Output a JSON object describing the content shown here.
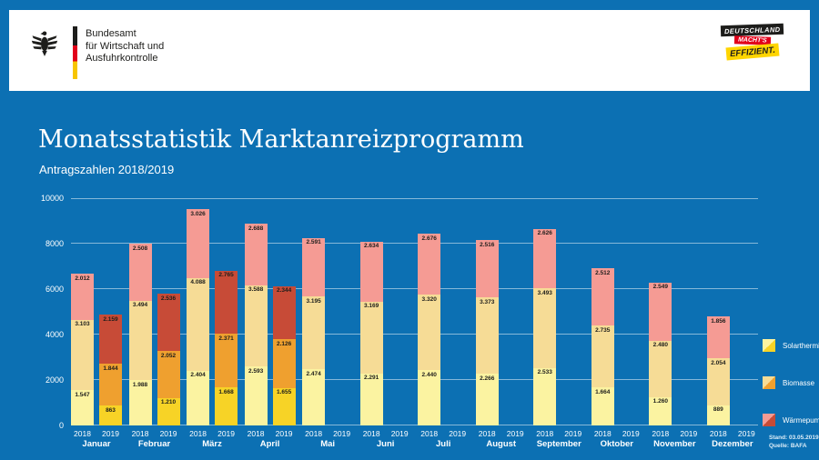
{
  "header": {
    "agency_lines": [
      "Bundesamt",
      "für Wirtschaft und",
      "Ausfuhrkontrolle"
    ],
    "campaign": [
      "DEUTSCHLAND",
      "MACHT'S",
      "EFFIZIENT."
    ]
  },
  "footer": {
    "stand": "Stand: 03.05.2019",
    "quelle": "Quelle: BAFA"
  },
  "colors": {
    "background": "#0C70B3",
    "header_background": "#FFFFFF",
    "text_on_blue": "#FFFFFF"
  },
  "chart_data": {
    "type": "bar",
    "stacked": true,
    "title": "Monatsstatistik Marktanreizprogramm",
    "subtitle": "Antragszahlen 2018/2019",
    "ylim": [
      0,
      10000
    ],
    "yticks": [
      0,
      2000,
      4000,
      6000,
      8000,
      10000
    ],
    "grid": true,
    "legend_position": "right",
    "segments": [
      "Solarthermie",
      "Biomasse",
      "Wärmepumpe"
    ],
    "legend": [
      {
        "label": "Solarthermie",
        "color_2018": "#FBF3A1",
        "color_2019": "#F7D326"
      },
      {
        "label": "Biomasse",
        "color_2018": "#F6DC96",
        "color_2019": "#EFA02F"
      },
      {
        "label": "Wärmepumpe",
        "color_2018": "#F59B94",
        "color_2019": "#C74B37"
      }
    ],
    "months": [
      {
        "month": "Januar",
        "bars": [
          {
            "year": "2018",
            "values": [
              1547,
              3103,
              2012
            ]
          },
          {
            "year": "2019",
            "values": [
              863,
              1844,
              2159
            ]
          }
        ]
      },
      {
        "month": "Februar",
        "bars": [
          {
            "year": "2018",
            "values": [
              1988,
              3494,
              2508
            ]
          },
          {
            "year": "2019",
            "values": [
              1210,
              2052,
              2536
            ]
          }
        ]
      },
      {
        "month": "März",
        "bars": [
          {
            "year": "2018",
            "values": [
              2404,
              4088,
              3026
            ]
          },
          {
            "year": "2019",
            "values": [
              1668,
              2371,
              2765
            ]
          }
        ]
      },
      {
        "month": "April",
        "bars": [
          {
            "year": "2018",
            "values": [
              2593,
              3588,
              2688
            ]
          },
          {
            "year": "2019",
            "values": [
              1655,
              2126,
              2344
            ]
          }
        ]
      },
      {
        "month": "Mai",
        "bars": [
          {
            "year": "2018",
            "values": [
              2474,
              3195,
              2591
            ]
          },
          {
            "year": "2019",
            "values": null
          }
        ]
      },
      {
        "month": "Juni",
        "bars": [
          {
            "year": "2018",
            "values": [
              2291,
              3169,
              2634
            ]
          },
          {
            "year": "2019",
            "values": null
          }
        ]
      },
      {
        "month": "Juli",
        "bars": [
          {
            "year": "2018",
            "values": [
              2440,
              3320,
              2676
            ]
          },
          {
            "year": "2019",
            "values": null
          }
        ]
      },
      {
        "month": "August",
        "bars": [
          {
            "year": "2018",
            "values": [
              2266,
              3373,
              2516
            ]
          },
          {
            "year": "2019",
            "values": null
          }
        ]
      },
      {
        "month": "September",
        "bars": [
          {
            "year": "2018",
            "values": [
              2533,
              3493,
              2626
            ]
          },
          {
            "year": "2019",
            "values": null
          }
        ]
      },
      {
        "month": "Oktober",
        "bars": [
          {
            "year": "2018",
            "values": [
              1664,
              2735,
              2512
            ]
          },
          {
            "year": "2019",
            "values": null
          }
        ]
      },
      {
        "month": "November",
        "bars": [
          {
            "year": "2018",
            "values": [
              1260,
              2480,
              2549
            ]
          },
          {
            "year": "2019",
            "values": null
          }
        ]
      },
      {
        "month": "Dezember",
        "bars": [
          {
            "year": "2018",
            "values": [
              889,
              2054,
              1856
            ]
          },
          {
            "year": "2019",
            "values": null
          }
        ]
      }
    ]
  }
}
